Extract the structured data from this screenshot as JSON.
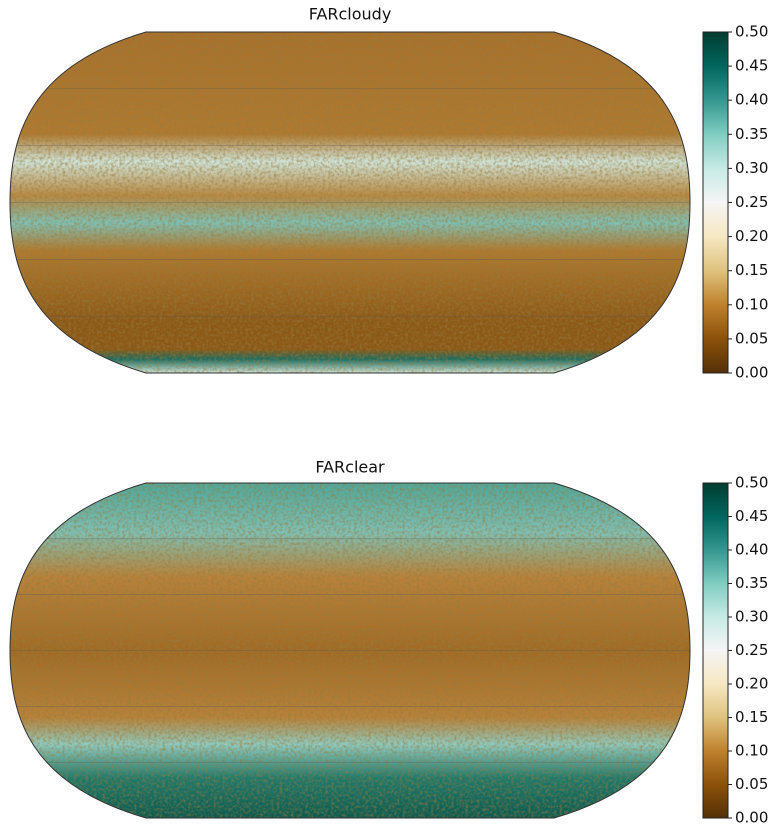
{
  "panels": [
    {
      "title": "FARcloudy",
      "colorbar": {
        "lim": [
          0,
          0.5
        ],
        "ticks": [
          {
            "value": 0,
            "label": "0.00"
          },
          0.05,
          {
            "value": 0.1,
            "label": "0.10"
          },
          0.15,
          {
            "value": 0.2,
            "label": "0.20"
          },
          0.25,
          {
            "value": 0.3,
            "label": "0.30"
          },
          0.35,
          {
            "value": 0.4,
            "label": "0.40"
          },
          0.45,
          {
            "value": 0.5,
            "label": "0.50"
          }
        ],
        "colors": [
          "#543005",
          "#8c510a",
          "#bf812d",
          "#dfc27d",
          "#f6e8c3",
          "#f5f5f5",
          "#c7eae5",
          "#80cdc1",
          "#35978f",
          "#01665e",
          "#003c30"
        ]
      }
    },
    {
      "title": "FARclear",
      "colorbar": {
        "lim": [
          0,
          0.5
        ],
        "ticks": [
          {
            "value": 0,
            "label": "0.00"
          },
          0.05,
          {
            "value": 0.1,
            "label": "0.10"
          },
          0.15,
          {
            "value": 0.2,
            "label": "0.20"
          },
          0.25,
          {
            "value": 0.3,
            "label": "0.30"
          },
          0.35,
          {
            "value": 0.4,
            "label": "0.40"
          },
          0.45,
          {
            "value": 0.5,
            "label": "0.50"
          }
        ],
        "colors": [
          "#543005",
          "#8c510a",
          "#bf812d",
          "#dfc27d",
          "#f6e8c3",
          "#f5f5f5",
          "#c7eae5",
          "#80cdc1",
          "#35978f",
          "#01665e",
          "#003c30"
        ]
      }
    }
  ]
}
